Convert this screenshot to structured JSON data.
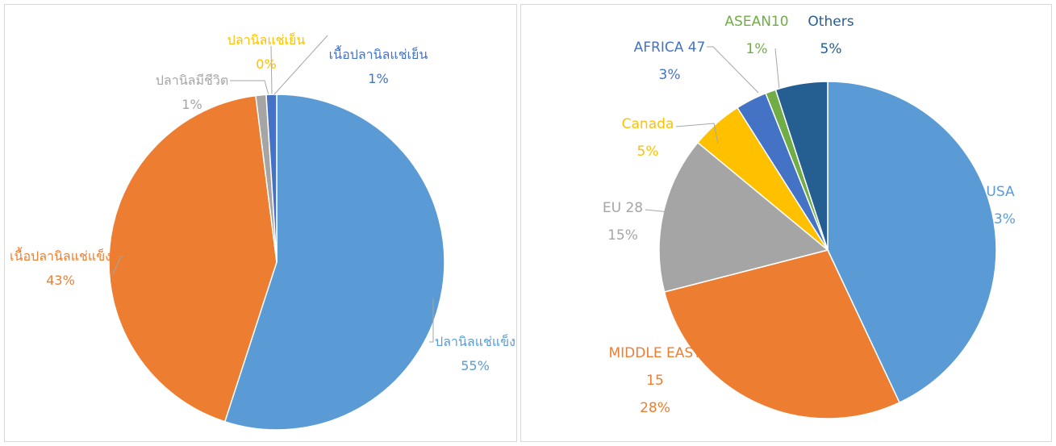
{
  "chart_data": [
    {
      "type": "pie",
      "categories": [
        "ปลานิลแช่แข็ง",
        "เนื้อปลานิลแช่แข็ง",
        "ปลานิลมีชีวิต",
        "ปลานิลแช่เย็น",
        "เนื้อปลานิลแช่เย็น"
      ],
      "values": [
        55,
        43,
        1,
        0,
        1
      ],
      "value_labels": [
        "55%",
        "43%",
        "1%",
        "0%",
        "1%"
      ],
      "colors": [
        "#5b9bd5",
        "#ed7d31",
        "#a5a5a5",
        "#ffc000",
        "#4472c4"
      ]
    },
    {
      "type": "pie",
      "categories": [
        "USA",
        "MIDDLE EAST 15",
        "EU 28",
        "Canada",
        "AFRICA 47",
        "ASEAN10",
        "Others"
      ],
      "values": [
        43,
        28,
        15,
        5,
        3,
        1,
        5
      ],
      "value_labels": [
        "43%",
        "28%",
        "15%",
        "5%",
        "3%",
        "1%",
        "5%"
      ],
      "colors": [
        "#5b9bd5",
        "#ed7d31",
        "#a5a5a5",
        "#ffc000",
        "#4472c4",
        "#70ad47",
        "#255e91"
      ]
    }
  ]
}
